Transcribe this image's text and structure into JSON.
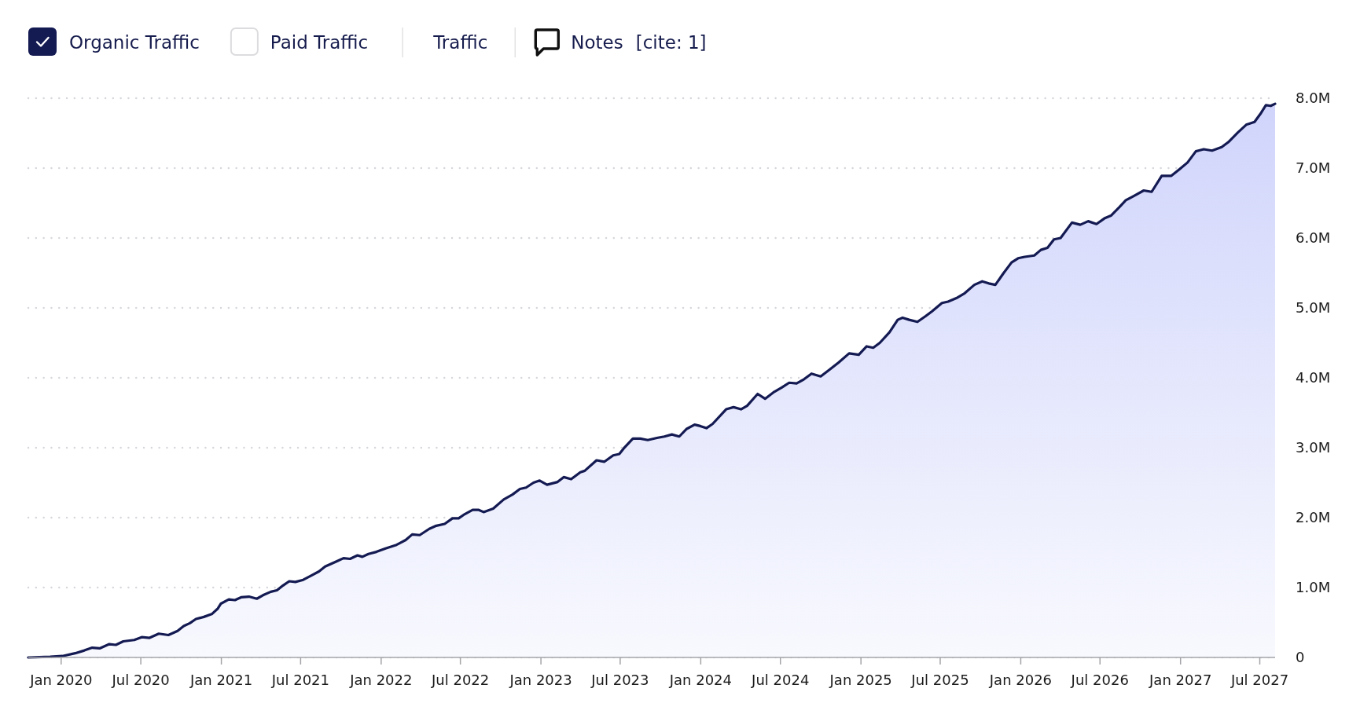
{
  "chart_data": {
    "type": "area",
    "legend": "top left",
    "grid": "y",
    "xlim": [
      "2019-10-18",
      "2027-08-05"
    ],
    "xticks": [
      {
        "value": "2020-01-01",
        "label": "Jan 2020"
      },
      {
        "value": "2020-07-01",
        "label": "Jul 2020"
      },
      {
        "value": "2021-01-01",
        "label": "Jan 2021"
      },
      {
        "value": "2021-07-01",
        "label": "Jul 2021"
      },
      {
        "value": "2022-01-01",
        "label": "Jan 2022"
      },
      {
        "value": "2022-07-01",
        "label": "Jul 2022"
      },
      {
        "value": "2023-01-01",
        "label": "Jan 2023"
      },
      {
        "value": "2023-07-01",
        "label": "Jul 2023"
      },
      {
        "value": "2024-01-01",
        "label": "Jan 2024"
      },
      {
        "value": "2024-07-01",
        "label": "Jul 2024"
      },
      {
        "value": "2025-01-01",
        "label": "Jan 2025"
      },
      {
        "value": "2025-07-01",
        "label": "Jul 2025"
      },
      {
        "value": "2026-01-01",
        "label": "Jan 2026"
      },
      {
        "value": "2026-07-01",
        "label": "Jul 2026"
      },
      {
        "value": "2027-01-01",
        "label": "Jan 2027"
      },
      {
        "value": "2027-07-01",
        "label": "Jul 2027"
      }
    ],
    "ylim": [
      0,
      8000000
    ],
    "yticks": [
      0,
      {
        "value": 1000000,
        "label": "1.0M"
      },
      {
        "value": 2000000,
        "label": "2.0M"
      },
      {
        "value": 3000000,
        "label": "3.0M"
      },
      {
        "value": 4000000,
        "label": "4.0M"
      },
      {
        "value": 5000000,
        "label": "5.0M"
      },
      {
        "value": 6000000,
        "label": "6.0M"
      },
      {
        "value": 7000000,
        "label": "7.0M"
      },
      {
        "value": 8000000,
        "label": "8.0M"
      }
    ],
    "x": [
      "2019-10-18",
      "2019-12-07",
      "2020-01-04",
      "2020-02-02",
      "2020-02-23",
      "2020-03-12",
      "2020-03-29",
      "2020-04-20",
      "2020-05-05",
      "2020-05-22",
      "2020-06-16",
      "2020-07-03",
      "2020-07-21",
      "2020-08-11",
      "2020-09-02",
      "2020-09-23",
      "2020-10-07",
      "2020-10-21",
      "2020-11-04",
      "2020-11-22",
      "2020-12-10",
      "2020-12-24",
      "2020-12-31",
      "2021-01-18",
      "2021-02-01",
      "2021-02-15",
      "2021-03-05",
      "2021-03-23",
      "2021-04-06",
      "2021-04-24",
      "2021-05-08",
      "2021-05-22",
      "2021-06-05",
      "2021-06-19",
      "2021-07-07",
      "2021-07-25",
      "2021-08-12",
      "2021-08-26",
      "2021-09-09",
      "2021-09-23",
      "2021-10-07",
      "2021-10-22",
      "2021-11-08",
      "2021-11-19",
      "2021-12-03",
      "2021-12-21",
      "2022-01-11",
      "2022-02-05",
      "2022-02-26",
      "2022-03-13",
      "2022-03-30",
      "2022-04-21",
      "2022-05-05",
      "2022-05-26",
      "2022-06-13",
      "2022-06-27",
      "2022-07-11",
      "2022-07-29",
      "2022-08-12",
      "2022-08-23",
      "2022-09-14",
      "2022-10-08",
      "2022-10-28",
      "2022-11-14",
      "2022-11-28",
      "2022-12-15",
      "2022-12-29",
      "2023-01-15",
      "2023-02-08",
      "2023-02-22",
      "2023-03-11",
      "2023-04-01",
      "2023-04-11",
      "2023-05-08",
      "2023-05-26",
      "2023-06-15",
      "2023-06-29",
      "2023-07-09",
      "2023-07-30",
      "2023-08-16",
      "2023-09-02",
      "2023-09-23",
      "2023-10-10",
      "2023-10-27",
      "2023-11-13",
      "2023-11-30",
      "2023-12-18",
      "2023-12-31",
      "2024-01-14",
      "2024-01-28",
      "2024-02-28",
      "2024-03-16",
      "2024-04-02",
      "2024-04-16",
      "2024-05-10",
      "2024-05-27",
      "2024-06-17",
      "2024-07-04",
      "2024-07-21",
      "2024-08-07",
      "2024-08-24",
      "2024-09-10",
      "2024-10-01",
      "2024-10-22",
      "2024-11-11",
      "2024-12-05",
      "2024-12-27",
      "2025-01-14",
      "2025-01-29",
      "2025-02-13",
      "2025-03-07",
      "2025-03-26",
      "2025-04-06",
      "2025-04-21",
      "2025-05-10",
      "2025-05-28",
      "2025-06-12",
      "2025-07-05",
      "2025-07-19",
      "2025-08-07",
      "2025-08-26",
      "2025-09-17",
      "2025-10-05",
      "2025-10-20",
      "2025-11-04",
      "2025-11-23",
      "2025-12-11",
      "2025-12-26",
      "2026-01-10",
      "2026-02-01",
      "2026-02-16",
      "2026-03-03",
      "2026-03-18",
      "2026-04-02",
      "2026-04-28",
      "2026-05-17",
      "2026-06-04",
      "2026-06-23",
      "2026-07-11",
      "2026-07-26",
      "2026-08-14",
      "2026-08-29",
      "2026-09-16",
      "2026-10-09",
      "2026-10-27",
      "2026-11-19",
      "2026-12-11",
      "2026-12-29",
      "2027-01-17",
      "2027-02-05",
      "2027-02-23",
      "2027-03-14",
      "2027-04-05",
      "2027-04-20",
      "2027-05-12",
      "2027-05-31",
      "2027-06-19",
      "2027-07-04",
      "2027-07-15",
      "2027-07-26",
      "2027-08-05"
    ],
    "series": [
      {
        "name": "Organic Traffic",
        "color": "#141a52",
        "values": [
          0,
          10000,
          20000,
          60000,
          100000,
          140000,
          130000,
          190000,
          180000,
          230000,
          250000,
          290000,
          280000,
          340000,
          320000,
          380000,
          450000,
          490000,
          550000,
          580000,
          620000,
          700000,
          770000,
          830000,
          820000,
          860000,
          870000,
          840000,
          890000,
          940000,
          960000,
          1030000,
          1090000,
          1080000,
          1110000,
          1170000,
          1230000,
          1300000,
          1340000,
          1380000,
          1420000,
          1410000,
          1460000,
          1440000,
          1480000,
          1510000,
          1560000,
          1610000,
          1680000,
          1760000,
          1750000,
          1840000,
          1880000,
          1910000,
          1990000,
          1990000,
          2050000,
          2110000,
          2110000,
          2080000,
          2130000,
          2260000,
          2330000,
          2410000,
          2430000,
          2500000,
          2530000,
          2470000,
          2510000,
          2580000,
          2550000,
          2650000,
          2670000,
          2820000,
          2800000,
          2890000,
          2910000,
          2990000,
          3130000,
          3130000,
          3110000,
          3140000,
          3160000,
          3190000,
          3160000,
          3270000,
          3330000,
          3310000,
          3280000,
          3340000,
          3550000,
          3580000,
          3550000,
          3600000,
          3770000,
          3700000,
          3800000,
          3860000,
          3930000,
          3920000,
          3980000,
          4060000,
          4020000,
          4120000,
          4220000,
          4350000,
          4330000,
          4450000,
          4430000,
          4500000,
          4650000,
          4830000,
          4860000,
          4830000,
          4800000,
          4880000,
          4950000,
          5070000,
          5090000,
          5140000,
          5210000,
          5330000,
          5380000,
          5350000,
          5330000,
          5500000,
          5650000,
          5710000,
          5730000,
          5750000,
          5830000,
          5860000,
          5980000,
          6000000,
          6220000,
          6190000,
          6240000,
          6200000,
          6280000,
          6320000,
          6440000,
          6540000,
          6600000,
          6680000,
          6660000,
          6890000,
          6890000,
          6980000,
          7080000,
          7240000,
          7270000,
          7250000,
          7300000,
          7370000,
          7510000,
          7620000,
          7660000,
          7790000,
          7900000,
          7890000,
          7920000
        ]
      }
    ],
    "annotations": [
      "Paid Traffic",
      "Traffic",
      "Notes",
      "[cite: 1]"
    ]
  }
}
